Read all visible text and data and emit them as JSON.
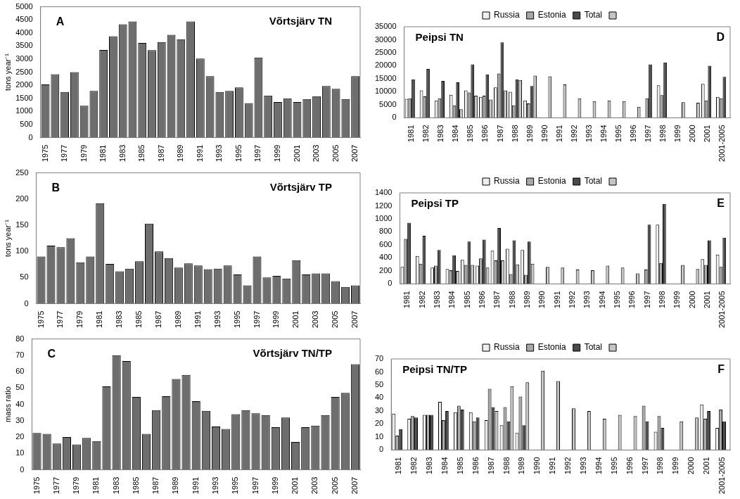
{
  "chart_data": [
    {
      "type": "bar",
      "title": "Võrtsjärv TN",
      "ylabel": "tons year⁻¹",
      "annotations": [
        "A"
      ],
      "color": "#6e6e6e",
      "categories": [
        "1975",
        null,
        "1977",
        null,
        "1979",
        null,
        "1981",
        null,
        "1983",
        null,
        "1985",
        null,
        "1987",
        null,
        "1989",
        null,
        "1991",
        null,
        "1993",
        null,
        "1995",
        null,
        "1997",
        null,
        "1999",
        null,
        "2001",
        null,
        "2003",
        null,
        "2005",
        null,
        "2007"
      ],
      "values": [
        2030,
        2420,
        1740,
        2500,
        1220,
        1780,
        3350,
        3870,
        4330,
        4440,
        3620,
        3340,
        3650,
        3930,
        3760,
        4440,
        3020,
        2350,
        1740,
        1780,
        1920,
        1320,
        3060,
        1610,
        1360,
        1500,
        1360,
        1470,
        1580,
        1970,
        1860,
        1470,
        2350
      ],
      "ylim": [
        0,
        5000
      ],
      "yticks": [
        0,
        500,
        1000,
        1500,
        2000,
        2500,
        3000,
        3500,
        4000,
        4500,
        5000
      ]
    },
    {
      "type": "bar",
      "title": "Peipsi TN",
      "annotations": [
        "D"
      ],
      "legend": "top",
      "categories": [
        "1981",
        "1982",
        "1983",
        "1984",
        "1985",
        "1986",
        "1987",
        "1988",
        "1989",
        "1990",
        "1991",
        "1992",
        "1993",
        "1994",
        "1995",
        "1996",
        "1997",
        "1998",
        "1999",
        "2000",
        "2001",
        "2001-2005"
      ],
      "series": [
        {
          "name": "Russia",
          "color": "#eeeeee",
          "values": [
            7300,
            10500,
            6700,
            8800,
            10500,
            8000,
            11700,
            10000,
            6700,
            null,
            null,
            null,
            null,
            null,
            null,
            null,
            null,
            12500,
            null,
            null,
            13000,
            8000
          ]
        },
        {
          "name": "Estonia",
          "color": "#a8a8a8",
          "values": [
            7500,
            8200,
            7500,
            4800,
            9700,
            8500,
            17000,
            4800,
            5500,
            null,
            null,
            null,
            null,
            null,
            null,
            null,
            7500,
            8700,
            null,
            null,
            6700,
            7500
          ]
        },
        {
          "name": "Total",
          "color": "#4a4a4a",
          "values": [
            14800,
            18800,
            14200,
            13600,
            20500,
            16700,
            29000,
            14800,
            12200,
            null,
            null,
            null,
            null,
            null,
            null,
            null,
            20500,
            21300,
            null,
            null,
            20000,
            15700
          ]
        },
        {
          "color": "#c4c4c4",
          "values": [
            null,
            null,
            null,
            3300,
            8500,
            7000,
            10500,
            14500,
            16200,
            15900,
            12800,
            7500,
            6400,
            6700,
            6400,
            4200,
            null,
            null,
            6000,
            5800,
            null,
            null
          ]
        }
      ],
      "ylim": [
        0,
        35000
      ],
      "yticks": [
        0,
        5000,
        10000,
        15000,
        20000,
        25000,
        30000,
        35000
      ]
    },
    {
      "type": "bar",
      "title": "Võrtsjärv TP",
      "ylabel": "tons year⁻¹",
      "annotations": [
        "B"
      ],
      "color": "#6e6e6e",
      "categories": [
        "1975",
        null,
        "1977",
        null,
        "1979",
        null,
        "1981",
        null,
        "1983",
        null,
        "1985",
        null,
        "1987",
        null,
        "1989",
        null,
        "1991",
        null,
        "1993",
        null,
        "1995",
        null,
        "1997",
        null,
        "1999",
        null,
        "2001",
        null,
        "2003",
        null,
        "2005",
        null,
        "2007"
      ],
      "values": [
        90,
        111,
        108,
        125,
        79,
        90,
        192,
        76,
        62,
        67,
        81,
        153,
        100,
        87,
        69,
        77,
        73,
        66,
        67,
        73,
        56,
        35,
        90,
        50,
        53,
        48,
        83,
        56,
        58,
        58,
        43,
        32,
        35
      ],
      "ylim": [
        0,
        250
      ],
      "yticks": [
        0,
        50,
        100,
        150,
        200,
        250
      ]
    },
    {
      "type": "bar",
      "title": "Peipsi TP",
      "annotations": [
        "E"
      ],
      "legend": "top",
      "categories": [
        "1981",
        "1982",
        "1983",
        "1984",
        "1985",
        "1986",
        "1987",
        "1988",
        "1989",
        "1990",
        "1991",
        "1992",
        "1993",
        "1994",
        "1995",
        "1996",
        "1997",
        "1998",
        "1999",
        "2000",
        "2001",
        "2001-2005"
      ],
      "series": [
        {
          "name": "Russia",
          "color": "#eeeeee",
          "values": [
            260,
            430,
            250,
            230,
            370,
            280,
            510,
            540,
            520,
            null,
            null,
            null,
            null,
            null,
            null,
            null,
            null,
            910,
            null,
            null,
            380,
            450
          ]
        },
        {
          "name": "Estonia",
          "color": "#a8a8a8",
          "values": [
            690,
            310,
            280,
            210,
            290,
            390,
            360,
            150,
            140,
            null,
            null,
            null,
            null,
            null,
            null,
            null,
            220,
            320,
            null,
            null,
            290,
            260
          ]
        },
        {
          "name": "Total",
          "color": "#4a4a4a",
          "values": [
            940,
            740,
            520,
            440,
            650,
            680,
            860,
            670,
            650,
            null,
            null,
            null,
            null,
            null,
            null,
            null,
            910,
            1230,
            null,
            null,
            670,
            710
          ]
        },
        {
          "color": "#c4c4c4",
          "values": [
            null,
            null,
            null,
            200,
            290,
            250,
            360,
            300,
            310,
            260,
            250,
            220,
            210,
            280,
            250,
            160,
            null,
            null,
            290,
            230,
            null,
            null
          ]
        }
      ],
      "ylim": [
        0,
        1400
      ],
      "yticks": [
        0,
        200,
        400,
        600,
        800,
        1000,
        1200,
        1400
      ]
    },
    {
      "type": "bar",
      "title": "Võrtsjärv TN/TP",
      "ylabel": "mass ratio",
      "annotations": [
        "C"
      ],
      "color": "#6e6e6e",
      "categories": [
        "1975",
        null,
        "1977",
        null,
        "1979",
        null,
        "1981",
        null,
        "1983",
        null,
        "1985",
        null,
        "1987",
        null,
        "1989",
        null,
        "1991",
        null,
        "1993",
        null,
        "1995",
        null,
        "1997",
        null,
        "1999",
        null,
        "2001",
        null,
        "2003",
        null,
        "2005",
        null,
        "2007"
      ],
      "values": [
        22.5,
        22,
        16,
        20,
        15.5,
        19.5,
        17.5,
        51,
        70,
        66.5,
        44.5,
        22,
        36.5,
        45,
        55.5,
        58,
        42,
        36,
        26.5,
        25,
        34,
        36.5,
        34.5,
        33.5,
        26,
        32,
        17,
        26,
        27,
        33.5,
        44.5,
        47,
        64.5
      ],
      "ylim": [
        0,
        80
      ],
      "yticks": [
        0,
        10,
        20,
        30,
        40,
        50,
        60,
        70,
        80
      ]
    },
    {
      "type": "bar",
      "title": "Peipsi TN/TP",
      "annotations": [
        "F"
      ],
      "legend": "top",
      "categories": [
        "1981",
        "1982",
        "1983",
        "1984",
        "1985",
        "1986",
        "1987",
        "1988",
        "1989",
        "1990",
        "1991",
        "1992",
        "1993",
        "1994",
        "1995",
        "1996",
        "1997",
        "1998",
        "1999",
        "2000",
        "2001",
        "2001-2005"
      ],
      "series": [
        {
          "name": "Russia",
          "color": "#eeeeee",
          "values": [
            28,
            24,
            27,
            37,
            29,
            29,
            23,
            19,
            13,
            null,
            null,
            null,
            null,
            null,
            null,
            null,
            null,
            14,
            null,
            null,
            35,
            17
          ]
        },
        {
          "name": "Estonia",
          "color": "#a8a8a8",
          "values": [
            11,
            26,
            27,
            23,
            34,
            22,
            47,
            33,
            41,
            null,
            null,
            null,
            null,
            null,
            null,
            null,
            34,
            26,
            null,
            null,
            24,
            31
          ]
        },
        {
          "name": "Total",
          "color": "#4a4a4a",
          "values": [
            16,
            25,
            27,
            30,
            31,
            25,
            33,
            22,
            19,
            null,
            null,
            null,
            null,
            null,
            null,
            null,
            22,
            17,
            null,
            null,
            30,
            22
          ]
        },
        {
          "color": "#c4c4c4",
          "values": [
            null,
            null,
            null,
            null,
            null,
            null,
            30,
            49,
            52,
            61,
            53,
            32,
            30,
            24,
            27,
            26,
            null,
            null,
            22,
            25,
            null,
            null
          ]
        }
      ],
      "ylim": [
        0,
        70
      ],
      "yticks": [
        0,
        10,
        20,
        30,
        40,
        50,
        60,
        70
      ]
    }
  ]
}
